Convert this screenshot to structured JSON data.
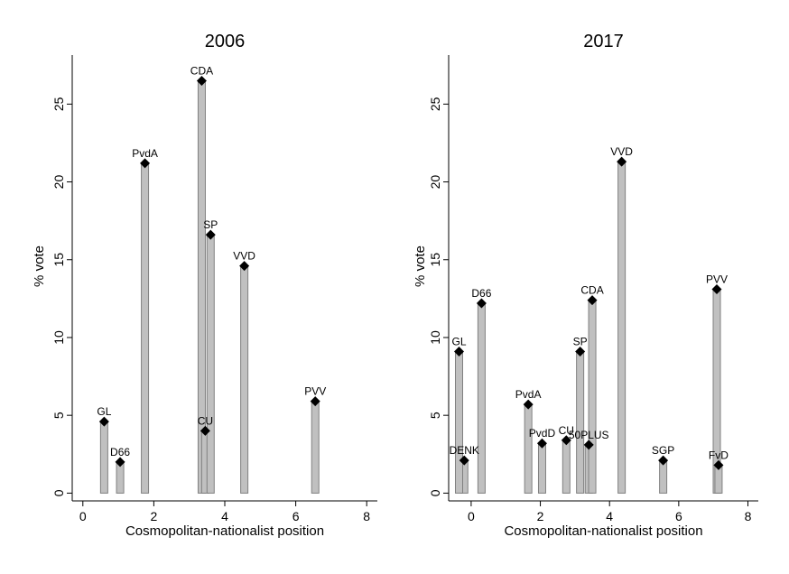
{
  "chart_data": [
    {
      "type": "bar",
      "title": "2006",
      "xlabel": "Cosmopolitan-nationalist position",
      "ylabel": "% vote",
      "xlim": [
        -0.3,
        8.3
      ],
      "ylim": [
        -0.5,
        28.5
      ],
      "xticks": [
        0,
        2,
        4,
        6,
        8
      ],
      "yticks": [
        0,
        5,
        10,
        15,
        20,
        25
      ],
      "grid": false,
      "points": [
        {
          "label": "GL",
          "x": 0.6,
          "y": 4.6
        },
        {
          "label": "D66",
          "x": 1.05,
          "y": 2.0
        },
        {
          "label": "PvdA",
          "x": 1.75,
          "y": 21.2
        },
        {
          "label": "CDA",
          "x": 3.35,
          "y": 26.5
        },
        {
          "label": "CU",
          "x": 3.45,
          "y": 4.0
        },
        {
          "label": "SP",
          "x": 3.6,
          "y": 16.6
        },
        {
          "label": "VVD",
          "x": 4.55,
          "y": 14.6
        },
        {
          "label": "PVV",
          "x": 6.55,
          "y": 5.9
        }
      ]
    },
    {
      "type": "bar",
      "title": "2017",
      "xlabel": "Cosmopolitan-nationalist position",
      "ylabel": "% vote",
      "xlim": [
        -0.65,
        8.3
      ],
      "ylim": [
        -0.5,
        28.5
      ],
      "xticks": [
        0,
        2,
        4,
        6,
        8
      ],
      "yticks": [
        0,
        5,
        10,
        15,
        20,
        25
      ],
      "grid": false,
      "points": [
        {
          "label": "DENK",
          "x": -0.2,
          "y": 2.1
        },
        {
          "label": "GL",
          "x": -0.35,
          "y": 9.1
        },
        {
          "label": "D66",
          "x": 0.3,
          "y": 12.2
        },
        {
          "label": "PvdA",
          "x": 1.65,
          "y": 5.7
        },
        {
          "label": "PvdD",
          "x": 2.05,
          "y": 3.2
        },
        {
          "label": "CU",
          "x": 2.75,
          "y": 3.4
        },
        {
          "label": "SP",
          "x": 3.15,
          "y": 9.1
        },
        {
          "label": "50PLUS",
          "x": 3.4,
          "y": 3.1
        },
        {
          "label": "CDA",
          "x": 3.5,
          "y": 12.4
        },
        {
          "label": "VVD",
          "x": 4.35,
          "y": 21.3
        },
        {
          "label": "SGP",
          "x": 5.55,
          "y": 2.1
        },
        {
          "label": "PVV",
          "x": 7.1,
          "y": 13.1
        },
        {
          "label": "FvD",
          "x": 7.15,
          "y": 1.8
        }
      ]
    }
  ]
}
